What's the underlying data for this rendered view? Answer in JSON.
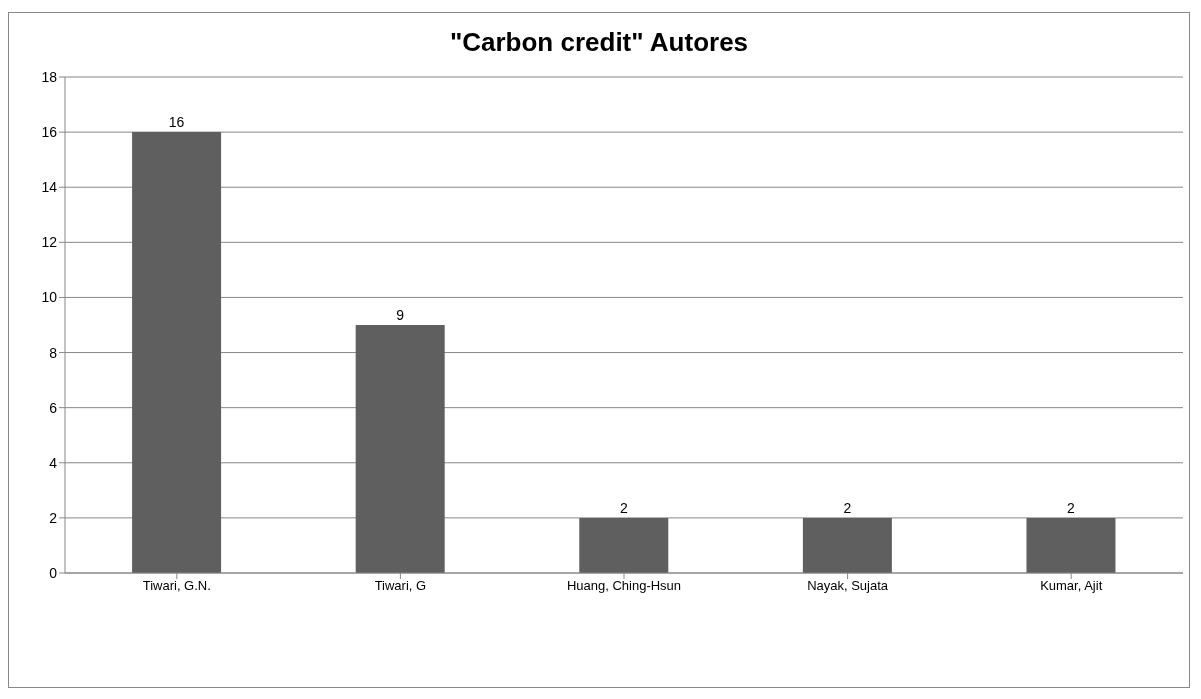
{
  "chart_data": {
    "type": "bar",
    "title": "\"Carbon credit\"  Autores",
    "categories": [
      "Tiwari, G.N.",
      "Tiwari, G",
      "Huang, Ching-Hsun",
      "Nayak, Sujata",
      "Kumar, Ajit"
    ],
    "values": [
      16,
      9,
      2,
      2,
      2
    ],
    "color": "#5f5f5f",
    "ylim": [
      0,
      18
    ],
    "yticks": [
      0,
      2,
      4,
      6,
      8,
      10,
      12,
      14,
      16,
      18
    ],
    "grid": "y",
    "data_labels": true,
    "legend": false
  }
}
